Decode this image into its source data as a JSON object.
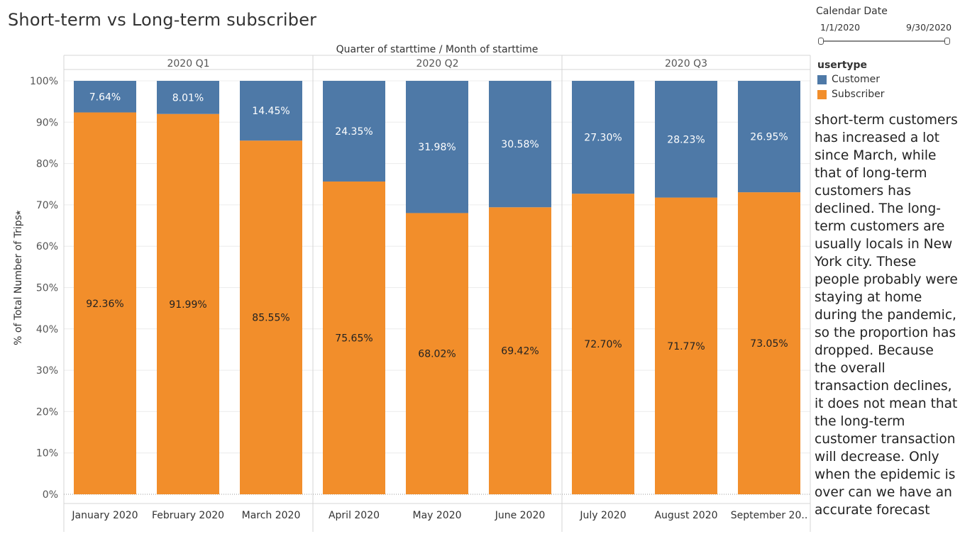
{
  "header": {
    "title": "Short-term vs Long-term subscriber"
  },
  "filter": {
    "title": "Calendar Date",
    "start": "1/1/2020",
    "end": "9/30/2020"
  },
  "legend": {
    "title": "usertype",
    "items": [
      {
        "label": "Customer",
        "color": "#4e79a7"
      },
      {
        "label": "Subscriber",
        "color": "#f28e2b"
      }
    ]
  },
  "annotation": "short-term customers has increased a lot since March, while that of long-term customers has declined. The long-term customers are usually locals in New York city. These people probably were staying at home during the pandemic, so the proportion has dropped. Because the overall transaction declines, it does not mean that the long-term customer transaction will decrease. Only when the epidemic is over can we have an accurate forecast",
  "chart_data": {
    "type": "bar",
    "stacked": true,
    "header_label": "Quarter of starttime  /  Month of starttime",
    "ylabel": "% of Total Number of Trips",
    "ylim": [
      0,
      100
    ],
    "y_ticks": [
      "0%",
      "10%",
      "20%",
      "30%",
      "40%",
      "50%",
      "60%",
      "70%",
      "80%",
      "90%",
      "100%"
    ],
    "grid": true,
    "legend_position": "right",
    "quarters": [
      {
        "label": "2020 Q1",
        "categories": [
          "January 2020",
          "February 2020",
          "March 2020"
        ]
      },
      {
        "label": "2020 Q2",
        "categories": [
          "April 2020",
          "May 2020",
          "June 2020"
        ]
      },
      {
        "label": "2020 Q3",
        "categories": [
          "July 2020",
          "August 2020",
          "September 20.."
        ]
      }
    ],
    "categories": [
      "January 2020",
      "February 2020",
      "March 2020",
      "April 2020",
      "May 2020",
      "June 2020",
      "July 2020",
      "August 2020",
      "September 20.."
    ],
    "series": [
      {
        "name": "Subscriber",
        "color": "#f28e2b",
        "values": [
          92.36,
          91.99,
          85.55,
          75.65,
          68.02,
          69.42,
          72.7,
          71.77,
          73.05
        ],
        "labels": [
          "92.36%",
          "91.99%",
          "85.55%",
          "75.65%",
          "68.02%",
          "69.42%",
          "72.70%",
          "71.77%",
          "73.05%"
        ]
      },
      {
        "name": "Customer",
        "color": "#4e79a7",
        "values": [
          7.64,
          8.01,
          14.45,
          24.35,
          31.98,
          30.58,
          27.3,
          28.23,
          26.95
        ],
        "labels": [
          "7.64%",
          "8.01%",
          "14.45%",
          "24.35%",
          "31.98%",
          "30.58%",
          "27.30%",
          "28.23%",
          "26.95%"
        ]
      }
    ]
  }
}
